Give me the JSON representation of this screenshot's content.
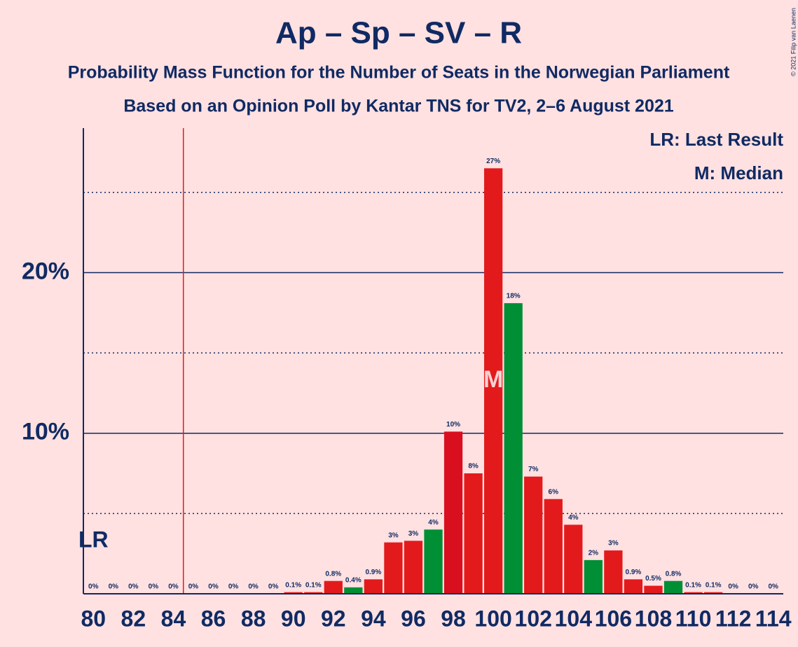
{
  "chart_data": {
    "type": "bar",
    "title": "Ap – Sp – SV – R",
    "subtitle": "Probability Mass Function for the Number of Seats in the Norwegian Parliament",
    "subtitle2": "Based on an Opinion Poll by Kantar TNS for TV2, 2–6 August 2021",
    "copyright": "© 2021 Filip van Laenen",
    "legend": [
      "LR: Last Result",
      "M: Median"
    ],
    "x": [
      80,
      81,
      82,
      83,
      84,
      85,
      86,
      87,
      88,
      89,
      90,
      91,
      92,
      93,
      94,
      95,
      96,
      97,
      98,
      99,
      100,
      101,
      102,
      103,
      104,
      105,
      106,
      107,
      108,
      109,
      110,
      111,
      112,
      113,
      114
    ],
    "values": [
      0,
      0,
      0,
      0,
      0,
      0,
      0,
      0,
      0,
      0,
      0.1,
      0.1,
      0.8,
      0.4,
      0.9,
      3.2,
      3.3,
      4.0,
      10.1,
      7.5,
      26.5,
      18.1,
      7.3,
      5.9,
      4.3,
      2.1,
      2.7,
      0.9,
      0.5,
      0.8,
      0.1,
      0.1,
      0,
      0,
      0
    ],
    "value_labels": [
      "0%",
      "0%",
      "0%",
      "0%",
      "0%",
      "0%",
      "0%",
      "0%",
      "0%",
      "0%",
      "0.1%",
      "0.1%",
      "0.8%",
      "0.4%",
      "0.9%",
      "3%",
      "3%",
      "4%",
      "10%",
      "8%",
      "27%",
      "18%",
      "7%",
      "6%",
      "4%",
      "2%",
      "3%",
      "0.9%",
      "0.5%",
      "0.8%",
      "0.1%",
      "0.1%",
      "0%",
      "0%",
      "0%"
    ],
    "colors": [
      "#e31a1c",
      "#e31a1c",
      "#e31a1c",
      "#e31a1c",
      "#e31a1c",
      "#e31a1c",
      "#e31a1c",
      "#e31a1c",
      "#e31a1c",
      "#e31a1c",
      "#e31a1c",
      "#e31a1c",
      "#e31a1c",
      "#008f35",
      "#e31a1c",
      "#e31a1c",
      "#e31a1c",
      "#008f35",
      "#d90e1f",
      "#e31a1c",
      "#e31a1c",
      "#008f35",
      "#e31a1c",
      "#e31a1c",
      "#e31a1c",
      "#008f35",
      "#e31a1c",
      "#e31a1c",
      "#e31a1c",
      "#008f35",
      "#e31a1c",
      "#e31a1c",
      "#e31a1c",
      "#e31a1c",
      "#e31a1c"
    ],
    "xlim": [
      79.5,
      114.5
    ],
    "xticks": [
      80,
      82,
      84,
      86,
      88,
      90,
      92,
      94,
      96,
      98,
      100,
      102,
      104,
      106,
      108,
      110,
      112,
      114
    ],
    "ylim": [
      0,
      29
    ],
    "yticks": [
      {
        "value": 10,
        "label": "10%"
      },
      {
        "value": 20,
        "label": "20%"
      }
    ],
    "minor_grid": [
      5,
      15,
      25
    ],
    "majority_line": 84.5,
    "last_result_label": "LR",
    "last_result": 80,
    "median_label": "M",
    "median": 100
  }
}
